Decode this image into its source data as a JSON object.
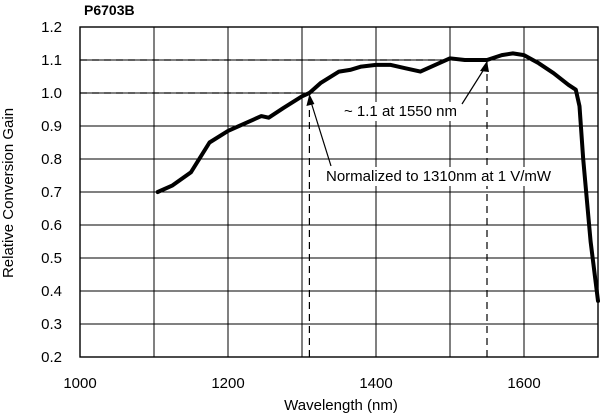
{
  "chart_data": {
    "type": "line",
    "title": "P6703B",
    "xlabel": "Wavelength (nm)",
    "ylabel": "Relative Conversion Gain",
    "xlim": [
      1000,
      1700
    ],
    "ylim": [
      0.2,
      1.2
    ],
    "xticks": [
      1000,
      1200,
      1400,
      1600
    ],
    "yticks": [
      0.2,
      0.3,
      0.4,
      0.5,
      0.6,
      0.7,
      0.8,
      0.9,
      1.0,
      1.1,
      1.2
    ],
    "xtick_labels": [
      "1000",
      "1200",
      "1400",
      "1600"
    ],
    "ytick_labels": [
      "0.2",
      "0.3",
      "0.4",
      "0.5",
      "0.6",
      "0.7",
      "0.8",
      "0.9",
      "1.0",
      "1.1",
      "1.2"
    ],
    "grid": true,
    "series": [
      {
        "x": [
          1105,
          1125,
          1150,
          1175,
          1200,
          1225,
          1245,
          1255,
          1275,
          1300,
          1310,
          1325,
          1350,
          1365,
          1380,
          1400,
          1420,
          1440,
          1460,
          1480,
          1500,
          1520,
          1540,
          1550,
          1570,
          1585,
          1600,
          1620,
          1640,
          1660,
          1670,
          1675,
          1680,
          1690,
          1700
        ],
        "y": [
          0.7,
          0.72,
          0.76,
          0.85,
          0.885,
          0.91,
          0.93,
          0.925,
          0.955,
          0.99,
          1.0,
          1.03,
          1.065,
          1.07,
          1.08,
          1.085,
          1.085,
          1.075,
          1.065,
          1.085,
          1.105,
          1.1,
          1.1,
          1.1,
          1.115,
          1.12,
          1.115,
          1.09,
          1.06,
          1.025,
          1.01,
          0.96,
          0.8,
          0.55,
          0.37
        ]
      }
    ],
    "reference_lines": [
      {
        "y": 1.0,
        "x_from": 1000,
        "x_to": 1310,
        "style": "dashed"
      },
      {
        "x": 1310,
        "y_from": 0.2,
        "y_to": 1.0,
        "style": "dashed"
      },
      {
        "y": 1.1,
        "x_from": 1000,
        "x_to": 1550,
        "style": "dashed"
      },
      {
        "x": 1550,
        "y_from": 0.2,
        "y_to": 1.1,
        "style": "dashed"
      }
    ],
    "annotations": [
      {
        "text": "~ 1.1 at 1550 nm",
        "points_to": {
          "x": 1550,
          "y": 1.1
        }
      },
      {
        "text": "Normalized to 1310nm at 1 V/mW",
        "points_to": {
          "x": 1310,
          "y": 1.0
        }
      }
    ]
  }
}
